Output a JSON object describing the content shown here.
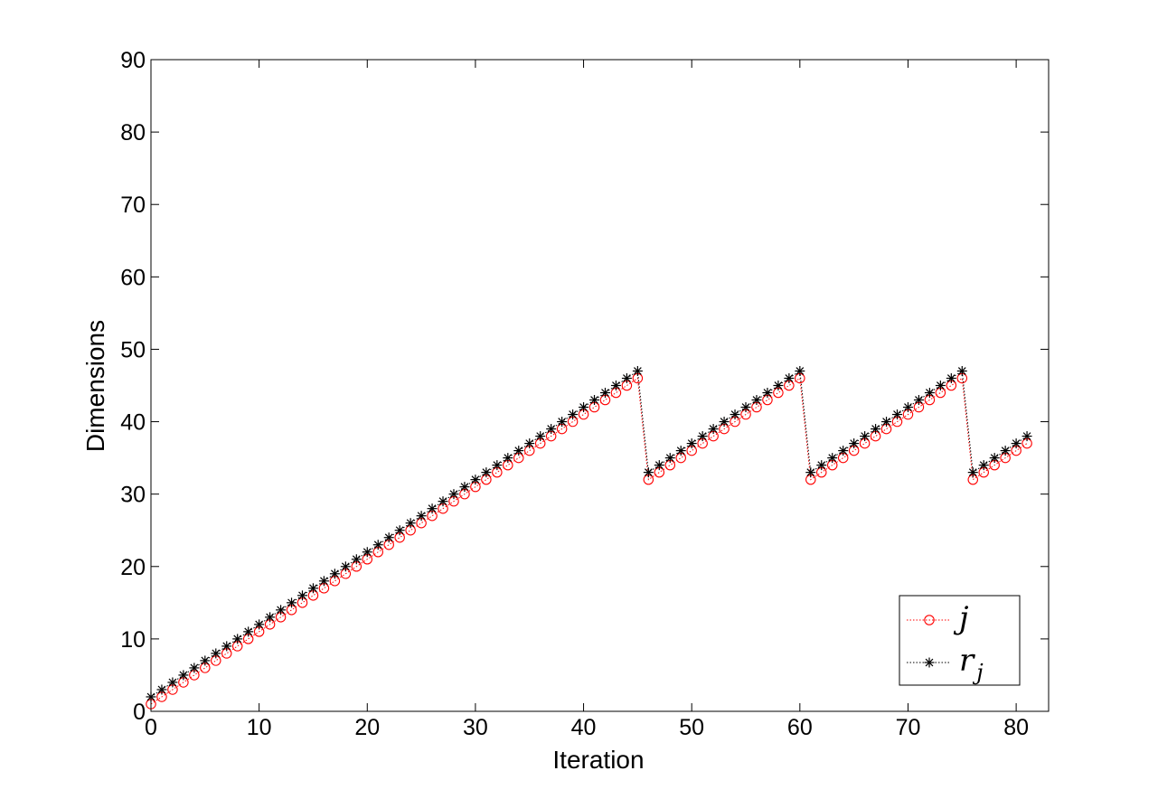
{
  "chart_data": {
    "type": "line",
    "xlabel": "Iteration",
    "ylabel": "Dimensions",
    "xlim": [
      0,
      83
    ],
    "ylim": [
      0,
      90
    ],
    "xticks": [
      0,
      10,
      20,
      30,
      40,
      50,
      60,
      70,
      80
    ],
    "yticks": [
      0,
      10,
      20,
      30,
      40,
      50,
      60,
      70,
      80,
      90
    ],
    "grid": false,
    "legend_position": "bottom-right",
    "x": [
      0,
      1,
      2,
      3,
      4,
      5,
      6,
      7,
      8,
      9,
      10,
      11,
      12,
      13,
      14,
      15,
      16,
      17,
      18,
      19,
      20,
      21,
      22,
      23,
      24,
      25,
      26,
      27,
      28,
      29,
      30,
      31,
      32,
      33,
      34,
      35,
      36,
      37,
      38,
      39,
      40,
      41,
      42,
      43,
      44,
      45,
      46,
      47,
      48,
      49,
      50,
      51,
      52,
      53,
      54,
      55,
      56,
      57,
      58,
      59,
      60,
      61,
      62,
      63,
      64,
      65,
      66,
      67,
      68,
      69,
      70,
      71,
      72,
      73,
      74,
      75,
      76,
      77,
      78,
      79,
      80,
      81
    ],
    "series": [
      {
        "name": "j",
        "legend_main": "j",
        "legend_sub": "",
        "color": "#ff0000",
        "marker": "circle",
        "line_style": "dotted",
        "values": [
          1,
          2,
          3,
          4,
          5,
          6,
          7,
          8,
          9,
          10,
          11,
          12,
          13,
          14,
          15,
          16,
          17,
          18,
          19,
          20,
          21,
          22,
          23,
          24,
          25,
          26,
          27,
          28,
          29,
          30,
          31,
          32,
          33,
          34,
          35,
          36,
          37,
          38,
          39,
          40,
          41,
          42,
          43,
          44,
          45,
          46,
          32,
          33,
          34,
          35,
          36,
          37,
          38,
          39,
          40,
          41,
          42,
          43,
          44,
          45,
          46,
          32,
          33,
          34,
          35,
          36,
          37,
          38,
          39,
          40,
          41,
          42,
          43,
          44,
          45,
          46,
          32,
          33,
          34,
          35,
          36,
          37
        ]
      },
      {
        "name": "r_j",
        "legend_main": "r",
        "legend_sub": "j",
        "color": "#000000",
        "marker": "star",
        "line_style": "dotted",
        "values": [
          2,
          3,
          4,
          5,
          6,
          7,
          8,
          9,
          10,
          11,
          12,
          13,
          14,
          15,
          16,
          17,
          18,
          19,
          20,
          21,
          22,
          23,
          24,
          25,
          26,
          27,
          28,
          29,
          30,
          31,
          32,
          33,
          34,
          35,
          36,
          37,
          38,
          39,
          40,
          41,
          42,
          43,
          44,
          45,
          46,
          47,
          33,
          34,
          35,
          36,
          37,
          38,
          39,
          40,
          41,
          42,
          43,
          44,
          45,
          46,
          47,
          33,
          34,
          35,
          36,
          37,
          38,
          39,
          40,
          41,
          42,
          43,
          44,
          45,
          46,
          47,
          33,
          34,
          35,
          36,
          37,
          38
        ]
      }
    ]
  }
}
